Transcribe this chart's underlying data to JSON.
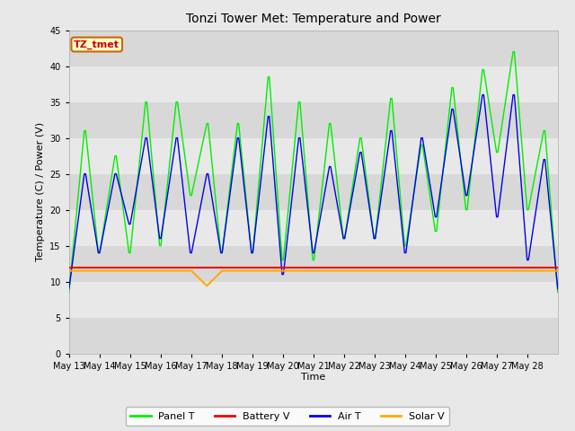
{
  "title": "Tonzi Tower Met: Temperature and Power",
  "xlabel": "Time",
  "ylabel": "Temperature (C) / Power (V)",
  "ylim": [
    0,
    45
  ],
  "yticks": [
    0,
    5,
    10,
    15,
    20,
    25,
    30,
    35,
    40,
    45
  ],
  "legend_label": "TZ_tmet",
  "series_labels": [
    "Panel T",
    "Battery V",
    "Air T",
    "Solar V"
  ],
  "series_colors": [
    "#00ee00",
    "#ee0000",
    "#0000ee",
    "#ffaa00"
  ],
  "n_days": 16,
  "xtick_labels": [
    "May 13",
    "May 14",
    "May 15",
    "May 16",
    "May 17",
    "May 18",
    "May 19",
    "May 20",
    "May 21",
    "May 22",
    "May 23",
    "May 24",
    "May 25",
    "May 26",
    "May 27",
    "May 28"
  ],
  "panel_t_peaks": [
    31,
    27.5,
    35,
    35,
    32,
    32,
    38.5,
    35,
    32,
    30,
    35.5,
    29,
    37,
    39.5,
    42,
    31
  ],
  "panel_t_troughs": [
    8.5,
    14,
    14,
    15,
    22,
    14,
    14,
    13,
    13,
    16,
    16,
    15,
    17,
    20,
    28,
    20
  ],
  "air_t_peaks": [
    25,
    25,
    30,
    30,
    25,
    30,
    33,
    30,
    26,
    28,
    31,
    30,
    34,
    36,
    36,
    27
  ],
  "air_t_troughs": [
    9,
    14,
    18,
    16,
    14,
    14,
    14,
    11,
    14,
    16,
    16,
    14,
    19,
    22,
    19,
    13
  ],
  "battery_v": 12.0,
  "solar_v_base": 11.5,
  "solar_v_dip_day": 4,
  "solar_v_dip_val": 9.4
}
